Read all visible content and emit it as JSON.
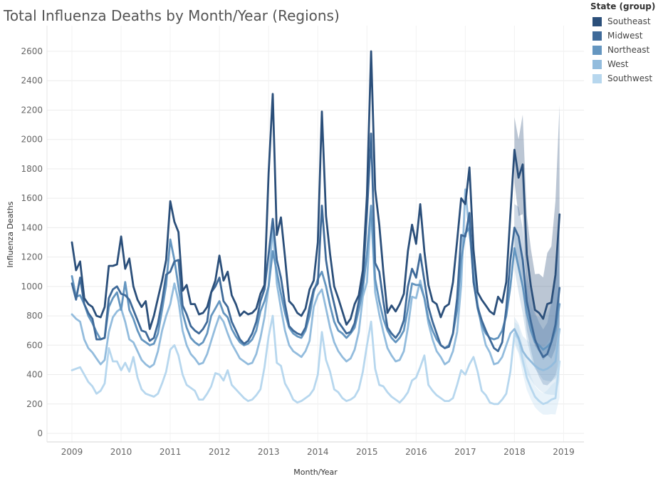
{
  "chart_data": {
    "type": "line",
    "title": "Total Influenza Deaths by Month/Year (Regions)",
    "xlabel": "Month/Year",
    "ylabel": "Influenza Deaths",
    "ylim": [
      0,
      2600
    ],
    "yticks": [
      0,
      200,
      400,
      600,
      800,
      1000,
      1200,
      1400,
      1600,
      1800,
      2000,
      2200,
      2400,
      2600
    ],
    "xticks": [
      "2009",
      "2010",
      "2011",
      "2012",
      "2013",
      "2014",
      "2015",
      "2016",
      "2017",
      "2018",
      "2019"
    ],
    "x_start": "2009-01",
    "x_end": "2018-12",
    "forecast_start": "2018-01",
    "grid": true,
    "legend": {
      "title": "State (group)",
      "position": "top-right",
      "items": [
        "Southeast",
        "Midwest",
        "Northeast",
        "West",
        "Southwest"
      ]
    },
    "series": [
      {
        "name": "Southeast",
        "color": "#2b4f7a",
        "values": [
          1300,
          1110,
          1170,
          920,
          880,
          860,
          800,
          790,
          860,
          1140,
          1140,
          1150,
          1340,
          1120,
          1190,
          1000,
          910,
          860,
          900,
          710,
          800,
          920,
          1040,
          1180,
          1580,
          1440,
          1370,
          970,
          1010,
          880,
          880,
          810,
          820,
          860,
          960,
          1040,
          1210,
          1040,
          1100,
          940,
          880,
          800,
          830,
          810,
          820,
          850,
          950,
          1010,
          1770,
          2310,
          1350,
          1470,
          1200,
          900,
          870,
          820,
          800,
          850,
          980,
          1040,
          1300,
          2190,
          1480,
          1220,
          1000,
          920,
          830,
          740,
          780,
          880,
          940,
          1110,
          1620,
          2600,
          1660,
          1420,
          1100,
          820,
          870,
          830,
          880,
          950,
          1240,
          1420,
          1290,
          1560,
          1240,
          1010,
          900,
          880,
          790,
          860,
          880,
          1030,
          1310,
          1600,
          1560,
          1810,
          1250,
          960,
          910,
          870,
          830,
          810,
          930,
          890,
          1030,
          1490,
          1930,
          1740,
          1830,
          1220,
          1000,
          840,
          820,
          780,
          880,
          890,
          1080,
          1490
        ]
      },
      {
        "name": "Midwest",
        "color": "#3f6a99",
        "values": [
          1020,
          910,
          1060,
          880,
          820,
          780,
          640,
          640,
          650,
          920,
          980,
          1000,
          950,
          940,
          910,
          840,
          770,
          700,
          690,
          630,
          650,
          750,
          900,
          1080,
          1100,
          1170,
          1180,
          870,
          810,
          730,
          700,
          680,
          710,
          760,
          960,
          1000,
          1060,
          900,
          860,
          760,
          700,
          640,
          610,
          630,
          680,
          760,
          900,
          980,
          1220,
          1460,
          1180,
          1060,
          880,
          730,
          700,
          680,
          670,
          720,
          860,
          980,
          1020,
          1550,
          1180,
          1000,
          880,
          760,
          720,
          680,
          690,
          750,
          900,
          1030,
          1500,
          2040,
          1160,
          1100,
          900,
          720,
          680,
          650,
          690,
          770,
          1000,
          1120,
          1060,
          1220,
          1040,
          860,
          760,
          680,
          600,
          580,
          590,
          680,
          920,
          1350,
          1340,
          1500,
          1030,
          860,
          770,
          700,
          640,
          580,
          560,
          620,
          850,
          1180,
          1400,
          1340,
          1180,
          900,
          760,
          640,
          570,
          520,
          540,
          620,
          740,
          990
        ]
      },
      {
        "name": "Northeast",
        "color": "#6596c0",
        "values": [
          1070,
          930,
          940,
          880,
          800,
          750,
          690,
          640,
          650,
          860,
          920,
          960,
          840,
          1030,
          840,
          780,
          700,
          640,
          620,
          600,
          610,
          680,
          840,
          1010,
          1320,
          1180,
          1000,
          820,
          720,
          650,
          620,
          600,
          620,
          680,
          800,
          850,
          900,
          820,
          790,
          710,
          660,
          620,
          600,
          610,
          640,
          700,
          830,
          900,
          1000,
          1240,
          1100,
          950,
          820,
          720,
          680,
          660,
          650,
          700,
          800,
          960,
          1050,
          1100,
          1000,
          870,
          760,
          700,
          680,
          650,
          680,
          720,
          840,
          980,
          1220,
          1550,
          1050,
          900,
          780,
          700,
          650,
          620,
          650,
          700,
          850,
          1020,
          1010,
          1010,
          920,
          780,
          700,
          640,
          600,
          580,
          600,
          680,
          840,
          1180,
          1360,
          1400,
          1050,
          850,
          740,
          680,
          650,
          640,
          650,
          700,
          800,
          1000,
          1260,
          1130,
          1000,
          820,
          700,
          620,
          600,
          570,
          590,
          620,
          700,
          880
        ]
      },
      {
        "name": "West",
        "color": "#93bcdd",
        "values": [
          810,
          780,
          760,
          640,
          580,
          550,
          510,
          470,
          500,
          690,
          790,
          830,
          850,
          760,
          640,
          620,
          560,
          500,
          470,
          450,
          470,
          560,
          700,
          800,
          880,
          1020,
          900,
          700,
          600,
          540,
          510,
          470,
          480,
          540,
          630,
          720,
          800,
          760,
          680,
          610,
          560,
          510,
          490,
          470,
          480,
          540,
          650,
          790,
          1000,
          1410,
          1020,
          850,
          700,
          600,
          560,
          540,
          520,
          560,
          630,
          860,
          940,
          980,
          850,
          720,
          620,
          560,
          520,
          490,
          510,
          570,
          690,
          930,
          1030,
          1530,
          960,
          810,
          690,
          580,
          530,
          490,
          500,
          560,
          720,
          930,
          920,
          1040,
          920,
          750,
          640,
          560,
          520,
          470,
          490,
          560,
          690,
          1010,
          1660,
          1360,
          1150,
          880,
          720,
          600,
          550,
          470,
          480,
          520,
          600,
          680,
          710,
          650,
          560,
          520,
          490,
          460,
          440,
          430,
          440,
          460,
          490,
          710
        ]
      },
      {
        "name": "Southwest",
        "color": "#b7d7ee",
        "values": [
          430,
          440,
          450,
          400,
          350,
          320,
          270,
          290,
          340,
          580,
          490,
          490,
          430,
          480,
          420,
          520,
          380,
          300,
          270,
          260,
          250,
          270,
          340,
          420,
          570,
          600,
          530,
          400,
          330,
          310,
          290,
          230,
          230,
          270,
          320,
          410,
          400,
          360,
          430,
          330,
          300,
          270,
          240,
          220,
          230,
          260,
          300,
          450,
          660,
          800,
          480,
          460,
          340,
          290,
          230,
          210,
          220,
          240,
          260,
          300,
          400,
          690,
          500,
          420,
          300,
          280,
          240,
          220,
          230,
          250,
          300,
          420,
          600,
          760,
          440,
          330,
          320,
          280,
          250,
          230,
          210,
          240,
          280,
          360,
          380,
          450,
          530,
          330,
          290,
          260,
          240,
          220,
          220,
          240,
          330,
          430,
          400,
          470,
          520,
          420,
          290,
          260,
          210,
          200,
          200,
          230,
          270,
          420,
          680,
          640,
          500,
          380,
          310,
          250,
          220,
          200,
          210,
          230,
          240,
          490
        ]
      }
    ]
  }
}
